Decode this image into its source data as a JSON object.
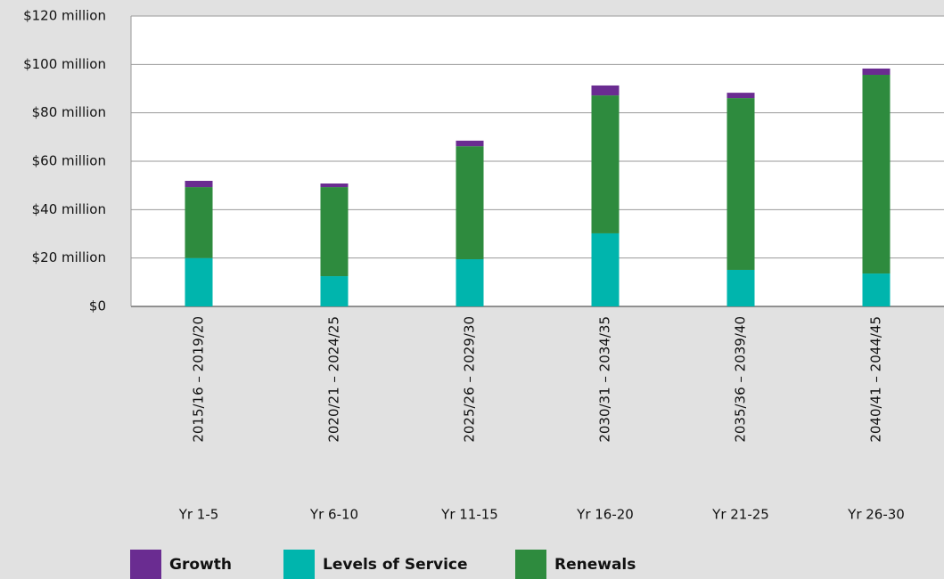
{
  "chart_data": {
    "type": "stacked_bar",
    "categories": [
      "2015/16 – 2019/20",
      "2020/21 – 2024/25",
      "2025/26 – 2029/30",
      "2030/31 – 2034/35",
      "2035/36 – 2039/40",
      "2040/41 – 2044/45"
    ],
    "year_labels": [
      "Yr 1-5",
      "Yr 6-10",
      "Yr 11-15",
      "Yr 16-20",
      "Yr 21-25",
      "Yr 26-30"
    ],
    "series": [
      {
        "name": "Levels of Service",
        "color": "#00b5ad",
        "values": [
          20,
          12.5,
          19.5,
          30.2,
          15.1,
          13.6
        ]
      },
      {
        "name": "Renewals",
        "color": "#2e8b3e",
        "values": [
          29.3,
          36.8,
          46.7,
          57,
          71,
          82.1
        ]
      },
      {
        "name": "Growth",
        "color": "#6a2c91",
        "values": [
          2.6,
          1.5,
          2.3,
          4.1,
          2.2,
          2.6
        ]
      }
    ],
    "legend_order": [
      2,
      0,
      1
    ],
    "ylim": [
      0,
      120
    ],
    "yticks": [
      {
        "value": 0,
        "label": "$0"
      },
      {
        "value": 20,
        "label": "$20 million"
      },
      {
        "value": 40,
        "label": "$40 million"
      },
      {
        "value": 60,
        "label": "$60 million"
      },
      {
        "value": 80,
        "label": "$80 million"
      },
      {
        "value": 100,
        "label": "$100 million"
      },
      {
        "value": 120,
        "label": "$120 million"
      }
    ],
    "grid": true
  }
}
